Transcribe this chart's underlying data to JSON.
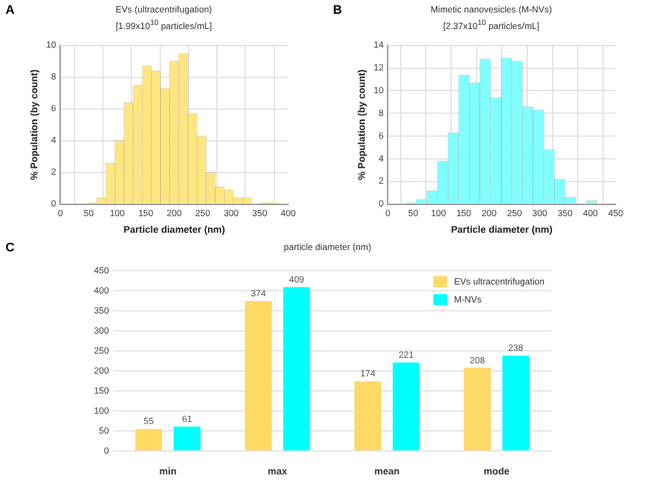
{
  "chart_data": [
    {
      "type": "histogram",
      "title": "EVs (ultracentrifugation)",
      "subtitle": "[1.99x10$^{10}$ particles/mL]",
      "xlabel": "Particle diameter (nm)",
      "ylabel": "% Population (by count)",
      "annotations": [
        "A"
      ],
      "color": "#ffe680",
      "bins": [
        48,
        64,
        80,
        96,
        112,
        128,
        144,
        160,
        176,
        192,
        208,
        224,
        240,
        256,
        272,
        288,
        304,
        320,
        336,
        352,
        368,
        384,
        400
      ],
      "values": [
        0.1,
        0.4,
        2.6,
        4.0,
        6.4,
        7.5,
        8.7,
        8.4,
        7.3,
        9.0,
        9.5,
        5.7,
        4.3,
        2.0,
        1.1,
        0.9,
        0.4,
        0.4,
        0,
        0.1,
        0.1,
        0
      ],
      "xlim": [
        0,
        400
      ],
      "xticks": [
        0,
        50,
        100,
        150,
        200,
        250,
        300,
        350,
        400
      ],
      "ylim": [
        0,
        10
      ],
      "yticks": [
        0,
        2,
        4,
        6,
        8,
        10
      ],
      "grid": true,
      "legend": false
    },
    {
      "type": "histogram",
      "title": "Mimetic nanovesicles (M-NVs)",
      "subtitle": "[2.37x10$^{10}$ particles/mL]",
      "xlabel": "Particle diameter (nm)",
      "ylabel": "% Population (by count)",
      "annotations": [
        "B"
      ],
      "color": "#80ffff",
      "bins": [
        35,
        56,
        77,
        98,
        119,
        140,
        161,
        182,
        203,
        224,
        245,
        266,
        287,
        308,
        329,
        350,
        371,
        392,
        413
      ],
      "values": [
        0.1,
        0.4,
        1.2,
        3.8,
        6.3,
        11.4,
        10.7,
        12.8,
        9.4,
        12.9,
        12.6,
        8.6,
        8.3,
        4.8,
        2.2,
        0.6,
        0,
        0.3
      ],
      "xlim": [
        0,
        450
      ],
      "xticks": [
        0,
        50,
        100,
        150,
        200,
        250,
        300,
        350,
        400,
        450
      ],
      "ylim": [
        0,
        14
      ],
      "yticks": [
        0,
        2,
        4,
        6,
        8,
        10,
        12,
        14
      ],
      "grid": true,
      "legend": false
    },
    {
      "type": "bar",
      "title": "particle diameter (nm)",
      "annotations": [
        "C"
      ],
      "categories": [
        "min",
        "max",
        "mean",
        "mode"
      ],
      "series": [
        {
          "name": "EVs ultracentrifugation",
          "color": "#ffd966",
          "values": [
            55,
            374,
            174,
            208
          ]
        },
        {
          "name": "M-NVs",
          "color": "#00ffff",
          "values": [
            61,
            409,
            221,
            238
          ]
        }
      ],
      "ylim": [
        0,
        450
      ],
      "yticks": [
        0,
        50,
        100,
        150,
        200,
        250,
        300,
        350,
        400,
        450
      ],
      "grid": "y",
      "legend": "top right",
      "data_labels": true
    }
  ]
}
